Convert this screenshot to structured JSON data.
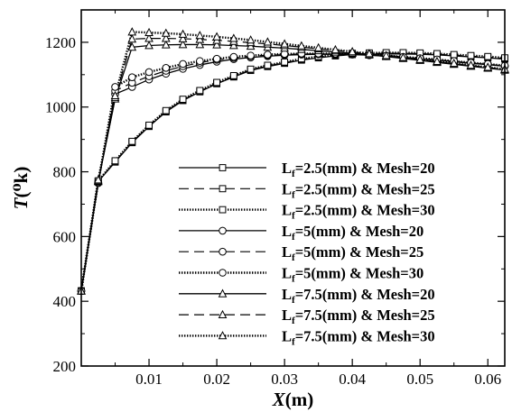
{
  "chart_data": {
    "type": "line",
    "x_axis": {
      "label": "X",
      "unit": "(m)",
      "range": [
        0,
        0.0625
      ],
      "ticks": [
        "0.01",
        "0.02",
        "0.03",
        "0.04",
        "0.05",
        "0.06"
      ],
      "tick_values": [
        0.01,
        0.02,
        0.03,
        0.04,
        0.05,
        0.06
      ]
    },
    "y_axis": {
      "label": "T",
      "unit": "(⁰k)",
      "range": [
        200,
        1300
      ],
      "ticks": [
        "200",
        "400",
        "600",
        "800",
        "1000",
        "1200"
      ],
      "tick_values": [
        200,
        400,
        600,
        800,
        1000,
        1200
      ]
    },
    "grid": false,
    "legend_position": "bottom-right",
    "series": [
      {
        "name": "L_f=2.5(mm) & Mesh=20",
        "legend": {
          "prefix": "L",
          "sub": "f",
          "suffix": "=2.5(mm) & Mesh=20"
        },
        "marker": "square",
        "dash": "solid",
        "x": [
          0,
          0.0025,
          0.005,
          0.0075,
          0.01,
          0.0125,
          0.015,
          0.0175,
          0.02,
          0.0225,
          0.025,
          0.0275,
          0.03,
          0.0325,
          0.035,
          0.0375,
          0.04,
          0.0425,
          0.045,
          0.0475,
          0.05,
          0.0525,
          0.055,
          0.0575,
          0.06,
          0.0625
        ],
        "y": [
          432,
          770,
          830,
          890,
          940,
          985,
          1020,
          1047,
          1072,
          1093,
          1113,
          1125,
          1135,
          1145,
          1152,
          1158,
          1162,
          1163,
          1164,
          1164,
          1163,
          1161,
          1158,
          1155,
          1152,
          1148
        ]
      },
      {
        "name": "L_f=2.5(mm) & Mesh=25",
        "legend": {
          "prefix": "L",
          "sub": "f",
          "suffix": "=2.5(mm) & Mesh=25"
        },
        "marker": "square",
        "dash": "dashed",
        "x": [
          0,
          0.0025,
          0.005,
          0.0075,
          0.01,
          0.0125,
          0.015,
          0.0175,
          0.02,
          0.0225,
          0.025,
          0.0275,
          0.03,
          0.0325,
          0.035,
          0.0375,
          0.04,
          0.0425,
          0.045,
          0.0475,
          0.05,
          0.0525,
          0.055,
          0.0575,
          0.06,
          0.0625
        ],
        "y": [
          432,
          770,
          832,
          892,
          942,
          987,
          1022,
          1049,
          1074,
          1095,
          1115,
          1127,
          1137,
          1147,
          1154,
          1160,
          1164,
          1165,
          1166,
          1166,
          1165,
          1163,
          1160,
          1157,
          1154,
          1150
        ]
      },
      {
        "name": "L_f=2.5(mm) & Mesh=30",
        "legend": {
          "prefix": "L",
          "sub": "f",
          "suffix": "=2.5(mm) & Mesh=30"
        },
        "marker": "square",
        "dash": "dotted",
        "x": [
          0,
          0.0025,
          0.005,
          0.0075,
          0.01,
          0.0125,
          0.015,
          0.0175,
          0.02,
          0.0225,
          0.025,
          0.0275,
          0.03,
          0.0325,
          0.035,
          0.0375,
          0.04,
          0.0425,
          0.045,
          0.0475,
          0.05,
          0.0525,
          0.055,
          0.0575,
          0.06,
          0.0625
        ],
        "y": [
          432,
          772,
          834,
          894,
          944,
          989,
          1024,
          1051,
          1076,
          1097,
          1117,
          1129,
          1139,
          1149,
          1156,
          1162,
          1166,
          1167,
          1168,
          1168,
          1167,
          1165,
          1162,
          1159,
          1156,
          1152
        ]
      },
      {
        "name": "L_f=5(mm) & Mesh=20",
        "legend": {
          "prefix": "L",
          "sub": "f",
          "suffix": "=5(mm) & Mesh=20"
        },
        "marker": "circle",
        "dash": "solid",
        "x": [
          0,
          0.0025,
          0.005,
          0.0075,
          0.01,
          0.0125,
          0.015,
          0.0175,
          0.02,
          0.0225,
          0.025,
          0.0275,
          0.03,
          0.0325,
          0.035,
          0.0375,
          0.04,
          0.0425,
          0.045,
          0.0475,
          0.05,
          0.0525,
          0.055,
          0.0575,
          0.06,
          0.0625
        ],
        "y": [
          432,
          765,
          1040,
          1062,
          1085,
          1103,
          1118,
          1130,
          1140,
          1148,
          1153,
          1157,
          1160,
          1162,
          1163,
          1163,
          1162,
          1160,
          1157,
          1153,
          1149,
          1145,
          1140,
          1135,
          1131,
          1126
        ]
      },
      {
        "name": "L_f=5(mm) & Mesh=25",
        "legend": {
          "prefix": "L",
          "sub": "f",
          "suffix": "=5(mm) & Mesh=25"
        },
        "marker": "circle",
        "dash": "dashed",
        "x": [
          0,
          0.0025,
          0.005,
          0.0075,
          0.01,
          0.0125,
          0.015,
          0.0175,
          0.02,
          0.0225,
          0.025,
          0.0275,
          0.03,
          0.0325,
          0.035,
          0.0375,
          0.04,
          0.0425,
          0.045,
          0.0475,
          0.05,
          0.0525,
          0.055,
          0.0575,
          0.06,
          0.0625
        ],
        "y": [
          432,
          765,
          1050,
          1075,
          1095,
          1112,
          1126,
          1137,
          1146,
          1152,
          1157,
          1160,
          1162,
          1164,
          1164,
          1164,
          1163,
          1161,
          1158,
          1154,
          1150,
          1146,
          1141,
          1136,
          1132,
          1127
        ]
      },
      {
        "name": "L_f=5(mm) & Mesh=30",
        "legend": {
          "prefix": "L",
          "sub": "f",
          "suffix": "=5(mm) & Mesh=30"
        },
        "marker": "circle",
        "dash": "dotted",
        "x": [
          0,
          0.0025,
          0.005,
          0.0075,
          0.01,
          0.0125,
          0.015,
          0.0175,
          0.02,
          0.0225,
          0.025,
          0.0275,
          0.03,
          0.0325,
          0.035,
          0.0375,
          0.04,
          0.0425,
          0.045,
          0.0475,
          0.05,
          0.0525,
          0.055,
          0.0575,
          0.06,
          0.0625
        ],
        "y": [
          432,
          768,
          1062,
          1092,
          1108,
          1121,
          1133,
          1142,
          1149,
          1155,
          1159,
          1162,
          1164,
          1165,
          1165,
          1165,
          1164,
          1162,
          1159,
          1155,
          1151,
          1147,
          1142,
          1137,
          1133,
          1128
        ]
      },
      {
        "name": "L_f=7.5(mm) & Mesh=20",
        "legend": {
          "prefix": "L",
          "sub": "f",
          "suffix": "=7.5(mm) & Mesh=20"
        },
        "marker": "triangle",
        "dash": "solid",
        "x": [
          0,
          0.0025,
          0.005,
          0.0075,
          0.01,
          0.0125,
          0.015,
          0.0175,
          0.02,
          0.0225,
          0.025,
          0.0275,
          0.03,
          0.0325,
          0.035,
          0.0375,
          0.04,
          0.0425,
          0.045,
          0.0475,
          0.05,
          0.0525,
          0.055,
          0.0575,
          0.06,
          0.0625
        ],
        "y": [
          432,
          770,
          1025,
          1185,
          1190,
          1192,
          1193,
          1193,
          1192,
          1190,
          1188,
          1185,
          1182,
          1178,
          1174,
          1170,
          1166,
          1161,
          1156,
          1150,
          1144,
          1138,
          1132,
          1126,
          1120,
          1114
        ]
      },
      {
        "name": "L_f=7.5(mm) & Mesh=25",
        "legend": {
          "prefix": "L",
          "sub": "f",
          "suffix": "=7.5(mm) & Mesh=25"
        },
        "marker": "triangle",
        "dash": "dashed",
        "x": [
          0,
          0.0025,
          0.005,
          0.0075,
          0.01,
          0.0125,
          0.015,
          0.0175,
          0.02,
          0.0225,
          0.025,
          0.0275,
          0.03,
          0.0325,
          0.035,
          0.0375,
          0.04,
          0.0425,
          0.045,
          0.0475,
          0.05,
          0.0525,
          0.055,
          0.0575,
          0.06,
          0.0625
        ],
        "y": [
          432,
          772,
          1030,
          1210,
          1212,
          1212,
          1211,
          1209,
          1206,
          1203,
          1199,
          1195,
          1190,
          1185,
          1180,
          1175,
          1170,
          1164,
          1158,
          1152,
          1146,
          1140,
          1134,
          1128,
          1122,
          1116
        ]
      },
      {
        "name": "L_f=7.5(mm) & Mesh=30",
        "legend": {
          "prefix": "L",
          "sub": "f",
          "suffix": "=7.5(mm) & Mesh=30"
        },
        "marker": "triangle",
        "dash": "dotted",
        "x": [
          0,
          0.0025,
          0.005,
          0.0075,
          0.01,
          0.0125,
          0.015,
          0.0175,
          0.02,
          0.0225,
          0.025,
          0.0275,
          0.03,
          0.0325,
          0.035,
          0.0375,
          0.04,
          0.0425,
          0.045,
          0.0475,
          0.05,
          0.0525,
          0.055,
          0.0575,
          0.06,
          0.0625
        ],
        "y": [
          432,
          775,
          1035,
          1232,
          1230,
          1228,
          1225,
          1221,
          1217,
          1212,
          1207,
          1201,
          1195,
          1189,
          1183,
          1177,
          1171,
          1165,
          1159,
          1153,
          1147,
          1141,
          1135,
          1129,
          1123,
          1117
        ]
      }
    ]
  }
}
